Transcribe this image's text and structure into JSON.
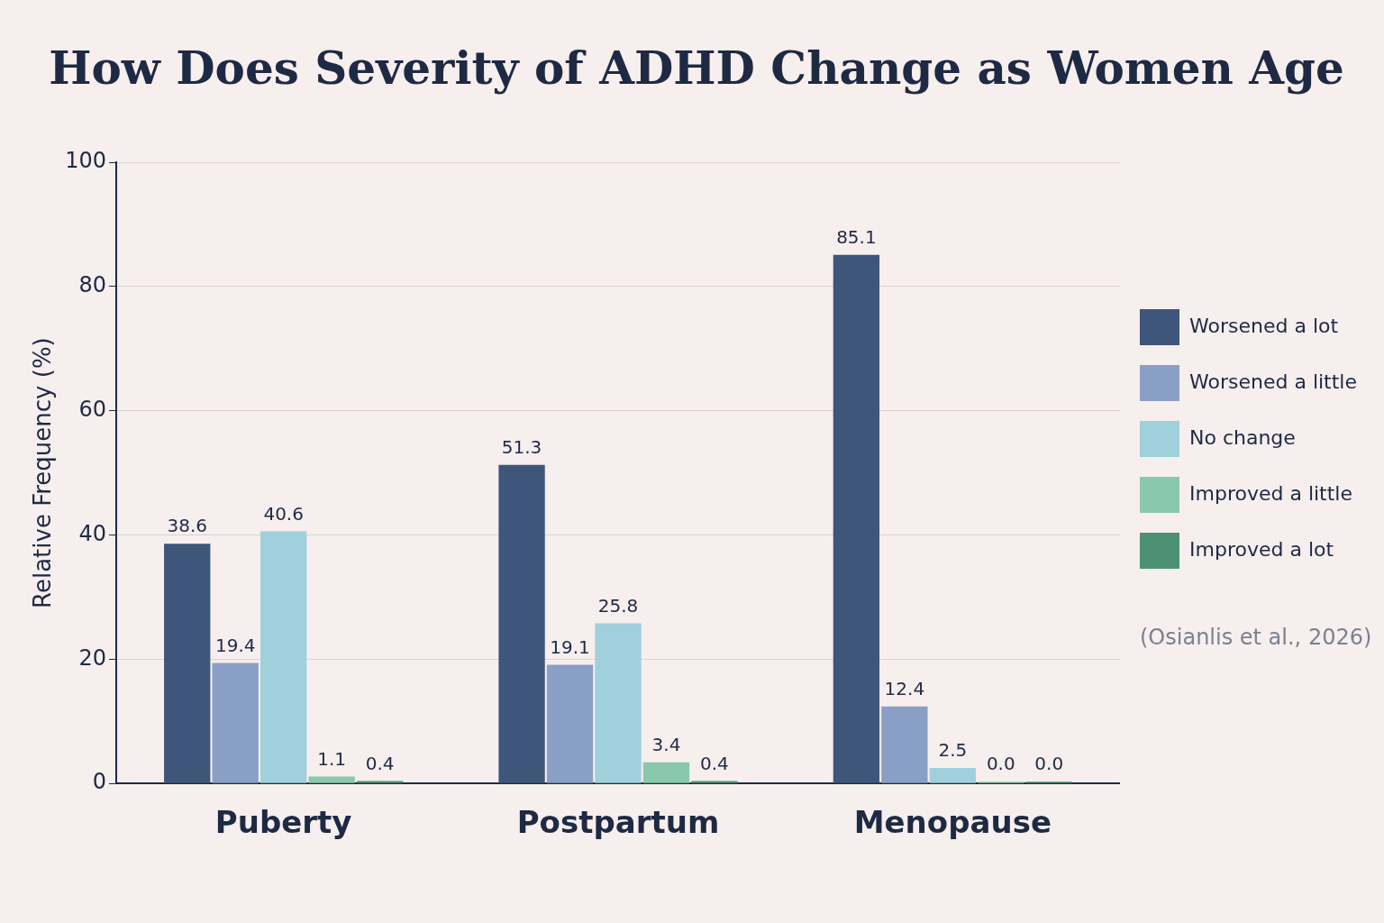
{
  "chart_data": {
    "type": "bar",
    "title": "How Does Severity of ADHD Change as Women Age",
    "ylabel": "Relative Frequency (%)",
    "categories": [
      "Puberty",
      "Postpartum",
      "Menopause"
    ],
    "series": [
      {
        "name": "Worsened a lot",
        "color": "#3e5679",
        "values": [
          38.6,
          51.3,
          85.1
        ],
        "value_labels": [
          "38.6",
          "51.3",
          "85.1"
        ]
      },
      {
        "name": "Worsened a little",
        "color": "#8a9fc5",
        "values": [
          19.4,
          19.1,
          12.4
        ],
        "value_labels": [
          "19.4",
          "19.1",
          "12.4"
        ]
      },
      {
        "name": "No change",
        "color": "#9fd0dc",
        "values": [
          40.6,
          25.8,
          2.5
        ],
        "value_labels": [
          "40.6",
          "25.8",
          "2.5"
        ]
      },
      {
        "name": "Improved a little",
        "color": "#88c9ab",
        "values": [
          1.1,
          3.4,
          0.0
        ],
        "value_labels": [
          "1.1",
          "3.4",
          "0.0"
        ]
      },
      {
        "name": "Improved a lot",
        "color": "#4b9172",
        "values": [
          0.4,
          0.4,
          0.0
        ],
        "value_labels": [
          "0.4",
          "0.4",
          "0.0"
        ]
      }
    ],
    "ylim": [
      0,
      100
    ],
    "yticks": [
      0,
      20,
      40,
      60,
      80,
      100
    ],
    "grid": "y",
    "legend": "right",
    "annotations": [
      "(Osianlis et al., 2026)"
    ]
  }
}
